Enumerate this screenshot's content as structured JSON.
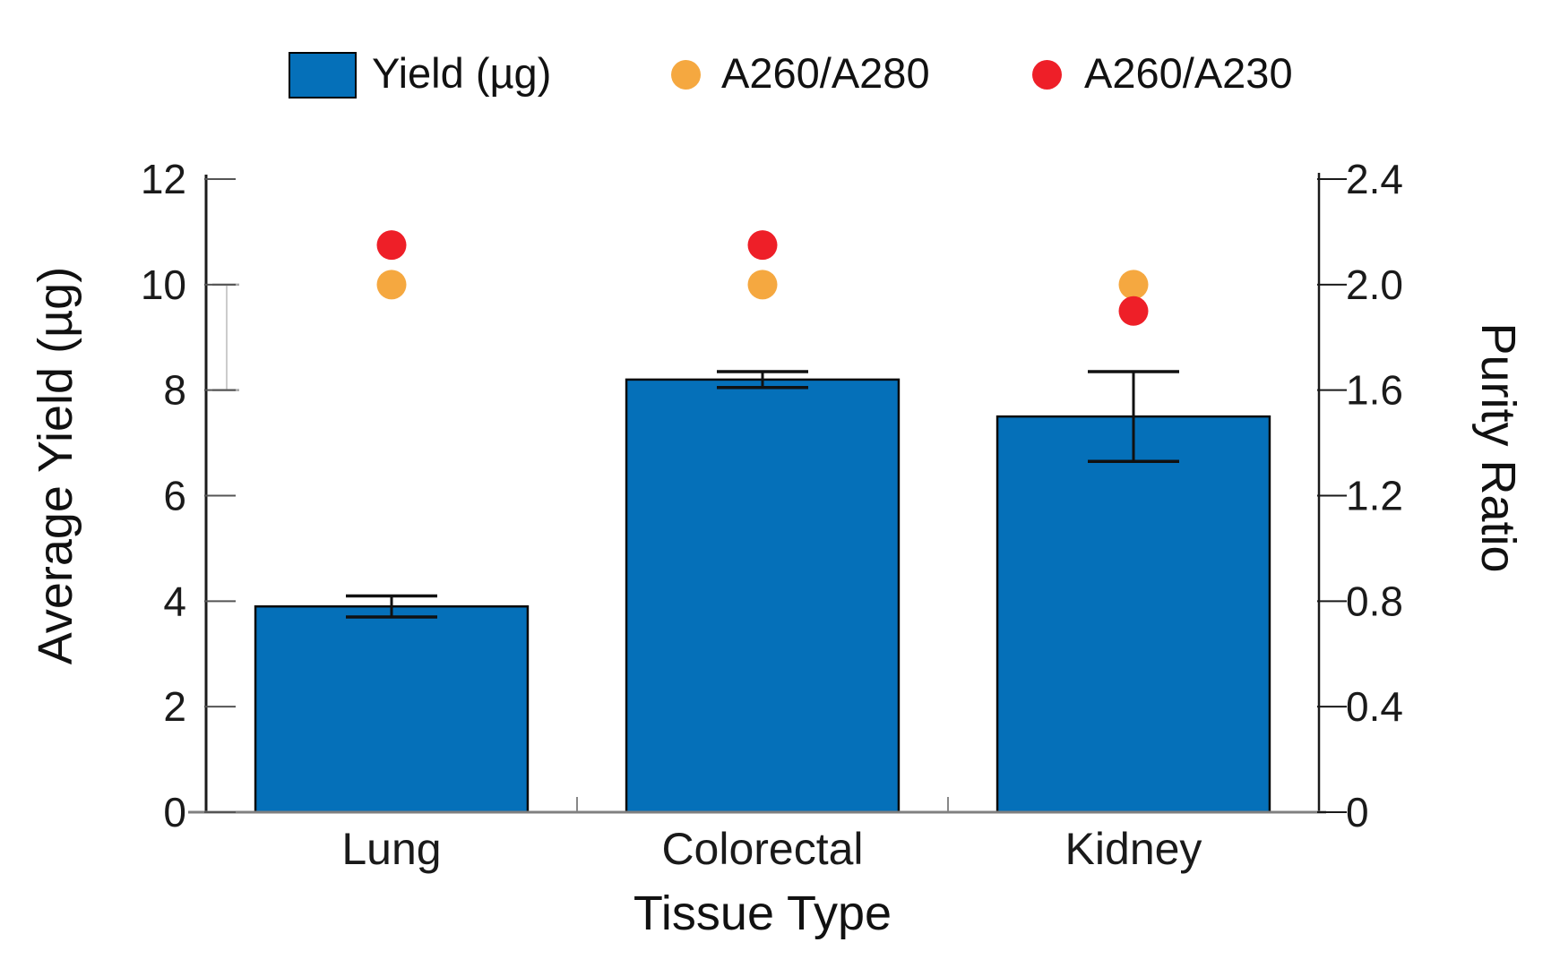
{
  "chart_data": {
    "type": "bar",
    "title": "",
    "categories": [
      "Lung",
      "Colorectal",
      "Kidney"
    ],
    "xlabel": "Tissue Type",
    "left_axis": {
      "label": "Average Yield (µg)",
      "lim": [
        0,
        12
      ],
      "tick_labels": [
        "0",
        "2",
        "4",
        "6",
        "8",
        "10",
        "12"
      ],
      "tick_values": [
        0,
        2,
        4,
        6,
        8,
        10,
        12
      ]
    },
    "right_axis": {
      "label": "Purity Ratio",
      "lim": [
        0,
        2.4
      ],
      "tick_labels": [
        "0",
        "0.4",
        "0.8",
        "1.2",
        "1.6",
        "2.0",
        "2.4"
      ],
      "tick_values": [
        0,
        0.4,
        0.8,
        1.2,
        1.6,
        2.0,
        2.4
      ]
    },
    "series": [
      {
        "name": "Yield (µg)",
        "kind": "bar",
        "axis": "left",
        "color": "#0570B9",
        "edge_color": "#0a0a0a",
        "values": [
          3.9,
          8.2,
          7.5
        ],
        "errors": [
          0.2,
          0.15,
          0.85
        ]
      },
      {
        "name": "A260/A280",
        "kind": "scatter",
        "axis": "right",
        "color": "#F5A840",
        "values": [
          2.0,
          2.0,
          2.0
        ]
      },
      {
        "name": "A260/A230",
        "kind": "scatter",
        "axis": "right",
        "color": "#EE1F28",
        "values": [
          2.15,
          2.15,
          1.9
        ]
      }
    ],
    "stray_errorbar": {
      "center": 9,
      "half_error": 1,
      "axis": "left",
      "line_color": "#cccccc",
      "cap_color": "#aaaaaa"
    },
    "legend_position": "top",
    "grid": false,
    "error_bar_color": "#111111",
    "spine_colors": {
      "left": "#1a1a1a",
      "right": "#1a1a1a",
      "bottom": "#808080"
    }
  }
}
